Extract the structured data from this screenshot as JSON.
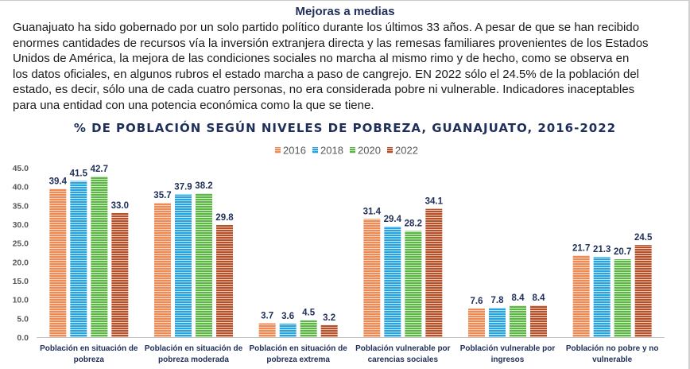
{
  "article": {
    "title": "Mejoras a medias",
    "lines": [
      "Guanajuato ha sido gobernado por un solo partido político durante los últimos 33 años. A pesar de que se han recibido",
      "enormes cantidades de recursos vía la inversión extranjera directa y las remesas familiares provenientes de los Estados",
      "Unidos de América, la mejora de las condiciones sociales no marcha al mismo rimo y de hecho, como se observa en",
      "los datos oficiales, en algunos rubros el estado marcha a paso de cangrejo. EN 2022 sólo el 24.5% de la población del",
      "estado, es decir, sólo una de cada cuatro personas, no era considerada pobre ni vulnerable. Indicadores inaceptables",
      "para una entidad con una potencia económica como la que se tiene."
    ]
  },
  "chart_data": {
    "type": "bar",
    "title": "% DE POBLACIÓN SEGÚN NIVELES DE POBREZA, GUANAJUATO, 2016-2022",
    "xlabel": "",
    "ylabel": "",
    "ylim": [
      0,
      45
    ],
    "yticks": [
      "0.0",
      "5.0",
      "10.0",
      "15.0",
      "20.0",
      "25.0",
      "30.0",
      "35.0",
      "40.0",
      "45.0"
    ],
    "grid": false,
    "legend_position": "top-center",
    "categories": [
      [
        "Población en situación de",
        "pobreza"
      ],
      [
        "Población en situación de",
        "pobreza moderada"
      ],
      [
        "Población en situación de",
        "pobreza extrema"
      ],
      [
        "Población vulnerable por",
        "carencias sociales"
      ],
      [
        "Población vulnerable por",
        "ingresos"
      ],
      [
        "Población no pobre y no",
        "vulnerable"
      ]
    ],
    "series": [
      {
        "name": "2016",
        "color": "#f08a55",
        "stripe": "#fbd3bc",
        "values": [
          39.4,
          35.7,
          3.7,
          31.4,
          7.6,
          21.7
        ]
      },
      {
        "name": "2018",
        "color": "#29a3e0",
        "stripe": "#b6e2f6",
        "values": [
          41.5,
          37.9,
          3.6,
          29.4,
          7.8,
          21.3
        ]
      },
      {
        "name": "2020",
        "color": "#5db545",
        "stripe": "#cdebc3",
        "values": [
          42.7,
          38.2,
          4.5,
          28.2,
          8.4,
          20.7
        ]
      },
      {
        "name": "2022",
        "color": "#b5502a",
        "stripe": "#ebc5b2",
        "values": [
          33.0,
          29.8,
          3.2,
          34.1,
          8.4,
          24.5
        ]
      }
    ],
    "label_color": "#1f2f5a",
    "title_color": "#1f2f5a",
    "tick_color": "#595959"
  }
}
